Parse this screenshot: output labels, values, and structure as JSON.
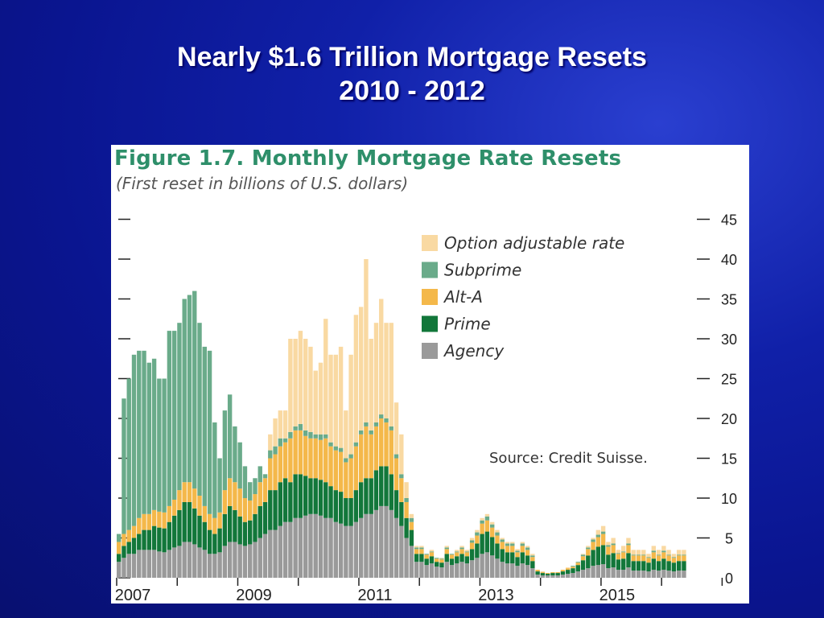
{
  "slide": {
    "title_line1": "Nearly $1.6 Trillion Mortgage Resets",
    "title_line2": "2010 - 2012"
  },
  "figure": {
    "title": "Figure 1.7. Monthly Mortgage Rate Resets",
    "subtitle": "(First reset in billions of U.S. dollars)",
    "source": "Source: Credit Suisse."
  },
  "colors": {
    "option_arm": "#f9d9a2",
    "subprime": "#6aab8a",
    "alt_a": "#f4b84a",
    "prime": "#12773a",
    "agency": "#9a9a9a"
  },
  "chart_data": {
    "type": "bar",
    "stacked": true,
    "title": "Figure 1.7. Monthly Mortgage Rate Resets",
    "subtitle": "(First reset in billions of U.S. dollars)",
    "xlabel": "",
    "ylabel": "",
    "ylim": [
      0,
      45
    ],
    "yticks": [
      0,
      5,
      10,
      15,
      20,
      25,
      30,
      35,
      40,
      45
    ],
    "xticks": [
      "2007",
      "2009",
      "2011",
      "2013",
      "2015"
    ],
    "x_start_year": 2007,
    "legend": [
      "Option adjustable rate",
      "Subprime",
      "Alt-A",
      "Prime",
      "Agency"
    ],
    "legend_position": "upper-right",
    "series_order": [
      "Agency",
      "Prime",
      "Alt-A",
      "Subprime",
      "Option adjustable rate"
    ],
    "totals": [
      5.5,
      22.5,
      25,
      28,
      28.5,
      28.5,
      27,
      27.5,
      25,
      25,
      31,
      31,
      32,
      35,
      35.5,
      36,
      32,
      29,
      28.5,
      19.5,
      15,
      21,
      23,
      19,
      17,
      14,
      12,
      12.5,
      14,
      13,
      18,
      20,
      21,
      21,
      30,
      30,
      31,
      30,
      29,
      26,
      27,
      33,
      28,
      28,
      29,
      21,
      28,
      33,
      34,
      40,
      30,
      32,
      35,
      32,
      32,
      22,
      18,
      12,
      8,
      4,
      4,
      3,
      3.5,
      2.5,
      2.5,
      4,
      3,
      3.5,
      4,
      3.5,
      5,
      6,
      7.5,
      8,
      7,
      6,
      5,
      4.5,
      4.5,
      3.5,
      4.5,
      4,
      3,
      1,
      0.8,
      0.6,
      0.7,
      0.8,
      1,
      1.3,
      1.5,
      2,
      3,
      4,
      5,
      6,
      6.5,
      4.5,
      5,
      3.5,
      4,
      5,
      3.5,
      3.5,
      3.5,
      3,
      4,
      3.5,
      4,
      3.5,
      3,
      3.5,
      3.5
    ],
    "series": [
      {
        "name": "Agency",
        "values": [
          2,
          2.5,
          3,
          3,
          3.5,
          3.5,
          3.5,
          3.5,
          3.3,
          3.2,
          3.5,
          3.8,
          4,
          4.5,
          4.5,
          4.2,
          3.8,
          3.5,
          3,
          3,
          3.2,
          4,
          4.5,
          4.5,
          4.2,
          4,
          4.2,
          4.5,
          5,
          5.5,
          6,
          6,
          6.5,
          7,
          7,
          7.5,
          7.5,
          7.8,
          8,
          8,
          7.8,
          7.5,
          7.5,
          7,
          6.8,
          6.5,
          6.5,
          7,
          7.5,
          8,
          8,
          8.5,
          9,
          9,
          8.5,
          7.5,
          6.5,
          5,
          4,
          2,
          2,
          1.6,
          1.8,
          1.4,
          1.3,
          2,
          1.6,
          1.8,
          2,
          1.8,
          2.2,
          2.5,
          3,
          3.2,
          2.8,
          2.4,
          2,
          1.8,
          1.8,
          1.5,
          1.8,
          1.6,
          1.2,
          0.4,
          0.3,
          0.3,
          0.3,
          0.3,
          0.4,
          0.5,
          0.6,
          0.8,
          1,
          1.2,
          1.5,
          1.6,
          1.7,
          1.2,
          1.3,
          1,
          1,
          1.3,
          0.9,
          0.9,
          0.9,
          0.8,
          1,
          0.9,
          1,
          0.9,
          0.8,
          0.9,
          0.9
        ]
      },
      {
        "name": "Prime",
        "values": [
          1,
          1.5,
          1.5,
          2,
          2,
          2.5,
          2.5,
          3,
          3,
          3,
          3.5,
          4,
          4.5,
          5,
          5,
          4.5,
          4,
          3.5,
          3,
          2.5,
          3,
          4,
          4.5,
          4,
          3.5,
          3,
          3,
          3.5,
          4,
          4,
          5,
          5,
          5.5,
          5.5,
          5,
          5.5,
          5.5,
          5,
          4.5,
          4.5,
          4.5,
          4.5,
          4,
          4,
          4,
          3.5,
          3.5,
          4,
          4.5,
          4.5,
          4.5,
          5,
          5,
          5,
          4.5,
          3.5,
          3,
          2.5,
          2,
          1,
          1,
          0.8,
          0.9,
          0.6,
          0.6,
          1,
          0.8,
          0.9,
          1,
          0.9,
          1.4,
          1.8,
          2.5,
          2.6,
          2.3,
          1.9,
          1.6,
          1.4,
          1.4,
          1.1,
          1.4,
          1.2,
          0.9,
          0.4,
          0.3,
          0.2,
          0.3,
          0.3,
          0.4,
          0.5,
          0.6,
          0.8,
          1.2,
          1.6,
          2,
          2.3,
          2.4,
          1.7,
          1.8,
          1.3,
          1.4,
          1.8,
          1.2,
          1.2,
          1.2,
          1.1,
          1.4,
          1.2,
          1.4,
          1.2,
          1.1,
          1.2,
          1.2
        ]
      },
      {
        "name": "Alt-A",
        "values": [
          1.5,
          1.5,
          1.5,
          1.5,
          2,
          2,
          2,
          2,
          2,
          2,
          2,
          2,
          2.5,
          2.5,
          2.5,
          2.5,
          2.5,
          2,
          2,
          2,
          2,
          3,
          3.5,
          3.5,
          3.5,
          3,
          2.5,
          2.5,
          3,
          3,
          4,
          4.5,
          4.5,
          4.5,
          5.5,
          5.5,
          5.5,
          5,
          5,
          5,
          5,
          5.5,
          5,
          5,
          5,
          4.5,
          5,
          5.5,
          6,
          6.5,
          5.5,
          5.5,
          6,
          5.5,
          5.5,
          4,
          3,
          2,
          1,
          0.6,
          0.6,
          0.5,
          0.5,
          0.4,
          0.4,
          0.6,
          0.5,
          0.5,
          0.6,
          0.5,
          0.8,
          1,
          1.3,
          1.4,
          1.2,
          1,
          0.9,
          0.8,
          0.8,
          0.6,
          0.8,
          0.7,
          0.5,
          0.2,
          0.1,
          0.1,
          0.1,
          0.1,
          0.2,
          0.2,
          0.2,
          0.3,
          0.5,
          0.8,
          1,
          1.2,
          1.4,
          1,
          1,
          0.7,
          0.8,
          1,
          0.7,
          0.7,
          0.7,
          0.6,
          0.8,
          0.7,
          0.8,
          0.7,
          0.6,
          0.7,
          0.7
        ]
      },
      {
        "name": "Subprime",
        "values": [
          1,
          17,
          19,
          21.5,
          21,
          20.5,
          19,
          19,
          16.7,
          16.8,
          22,
          21.2,
          21,
          23,
          23.5,
          24.8,
          21.7,
          20,
          20.5,
          12,
          6.8,
          10,
          10.5,
          7,
          5.8,
          4,
          2.3,
          2,
          2,
          0.5,
          1,
          1,
          1,
          0.5,
          0.8,
          0.5,
          0.8,
          0.7,
          0.8,
          0.5,
          0.7,
          0.5,
          0.5,
          0.5,
          0.5,
          0.5,
          0.5,
          0.5,
          0.5,
          0.5,
          0.5,
          0.5,
          0.5,
          0.5,
          0.5,
          0.5,
          0.5,
          0.5,
          0.5,
          0.2,
          0.2,
          0.1,
          0.1,
          0.1,
          0.1,
          0.2,
          0.1,
          0.1,
          0.2,
          0.1,
          0.3,
          0.4,
          0.4,
          0.5,
          0.4,
          0.4,
          0.3,
          0.3,
          0.3,
          0.2,
          0.3,
          0.3,
          0.2,
          0,
          0,
          0,
          0,
          0,
          0,
          0,
          0.1,
          0.1,
          0.2,
          0.2,
          0.3,
          0.3,
          0.3,
          0.2,
          0.2,
          0.1,
          0.1,
          0.2,
          0.1,
          0.1,
          0.1,
          0.1,
          0.2,
          0.1,
          0.2,
          0.1,
          0.1,
          0.1,
          0.1
        ]
      },
      {
        "name": "Option adjustable rate",
        "values": [
          0,
          0,
          0,
          0,
          0,
          0,
          0,
          0,
          0,
          0,
          0,
          0,
          0,
          0,
          0,
          0,
          0,
          0,
          0,
          0,
          0,
          0,
          0,
          0,
          0,
          0,
          0,
          0,
          0,
          0,
          2,
          3.5,
          3.5,
          3.5,
          11.7,
          11,
          11.7,
          11.5,
          10.7,
          8,
          9,
          14.5,
          11,
          11.5,
          12.7,
          6,
          12.5,
          16,
          15.5,
          20.5,
          11.5,
          12.5,
          14.5,
          12,
          13,
          6.5,
          5,
          2,
          0.5,
          0.2,
          0.2,
          0,
          0.2,
          0,
          0.1,
          0.2,
          0,
          0.2,
          0.2,
          0.2,
          0.3,
          0.3,
          0.3,
          0.3,
          0.3,
          0.3,
          0.2,
          0.2,
          0.2,
          0.2,
          0.2,
          0.2,
          0.2,
          0,
          0.1,
          0,
          0,
          0,
          0,
          0.1,
          0,
          0,
          0.1,
          0.2,
          0.2,
          0.6,
          0.7,
          0.4,
          0.7,
          0.4,
          0.7,
          0.7,
          0.6,
          0.6,
          0.6,
          0.4,
          0.6,
          0.6,
          0.6,
          0.6,
          0.4,
          0.6,
          0.6
        ]
      }
    ]
  }
}
